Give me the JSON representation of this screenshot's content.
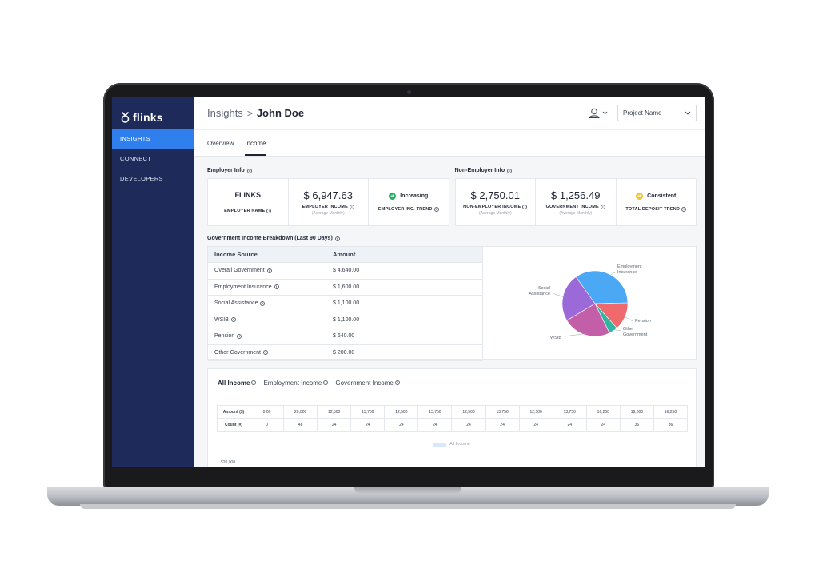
{
  "sidebar": {
    "brand": "flinks",
    "items": [
      {
        "label": "INSIGHTS",
        "active": true
      },
      {
        "label": "CONNECT",
        "active": false
      },
      {
        "label": "DEVELOPERS",
        "active": false
      }
    ]
  },
  "header": {
    "breadcrumb_root": "Insights",
    "breadcrumb_separator": ">",
    "breadcrumb_current": "John Doe",
    "project_select": "Project Name"
  },
  "tabs": [
    {
      "label": "Overview",
      "active": false
    },
    {
      "label": "Income",
      "active": true
    }
  ],
  "employer": {
    "title": "Employer Info",
    "name_value": "FLINKS",
    "name_label": "EMPLOYER NAME",
    "income_value": "$ 6,947.63",
    "income_label": "EMPLOYER INCOME",
    "income_sub": "(Average Monthly)",
    "trend_value": "Increasing",
    "trend_label": "EMPLOYER INC. TREND",
    "trend_color": "#27ae60"
  },
  "non_employer": {
    "title": "Non-Employer Info",
    "income_value": "$ 2,750.01",
    "income_label": "NON-EMPLOYER INCOME",
    "income_sub": "(Average Monthly)",
    "gov_value": "$ 1,256.49",
    "gov_label": "GOVERNMENT INCOME",
    "gov_sub": "(Average Monthly)",
    "trend_value": "Consistent",
    "trend_label": "TOTAL DEPOSIT TREND",
    "trend_color": "#f2c230"
  },
  "government": {
    "title": "Government Income Breakdown (Last 90 Days)",
    "headers": [
      "Income Source",
      "Amount"
    ],
    "rows": [
      {
        "source": "Overall Government",
        "amount": "$ 4,640.00"
      },
      {
        "source": "Employment Insurance",
        "amount": "$ 1,600.00"
      },
      {
        "source": "Social Assistance",
        "amount": "$ 1,100.00"
      },
      {
        "source": "WSIB",
        "amount": "$ 1,100.00"
      },
      {
        "source": "Pension",
        "amount": "$ 640.00"
      },
      {
        "source": "Other Government",
        "amount": "$ 200.00"
      }
    ]
  },
  "chart_data": {
    "type": "pie",
    "slices": [
      {
        "label": "Employment Insurance",
        "value": 1600,
        "color": "#4aa8f5"
      },
      {
        "label": "Pension",
        "value": 640,
        "color": "#f0696c"
      },
      {
        "label": "Other Government",
        "value": 200,
        "color": "#2fb5a0"
      },
      {
        "label": "WSIB",
        "value": 1100,
        "color": "#c25fa8"
      },
      {
        "label": "Social Assistance",
        "value": 1100,
        "color": "#9b6ad8"
      }
    ]
  },
  "income_tabs": [
    {
      "label": "All Income",
      "active": true
    },
    {
      "label": "Employment Income",
      "active": false
    },
    {
      "label": "Government Income",
      "active": false
    }
  ],
  "income_table": {
    "amount_label": "Amount ($)",
    "count_label": "Count (#)",
    "amounts": [
      "0,00",
      "20,000",
      "12,500",
      "13,750",
      "12,500",
      "13,750",
      "12,500",
      "13,750",
      "12,500",
      "13,750",
      "16,250",
      "19,000",
      "16,250"
    ],
    "counts": [
      "0",
      "48",
      "24",
      "24",
      "24",
      "24",
      "24",
      "24",
      "24",
      "24",
      "24",
      "36",
      "36"
    ]
  },
  "income_legend": "All Income",
  "income_y_tick": "$20,000"
}
